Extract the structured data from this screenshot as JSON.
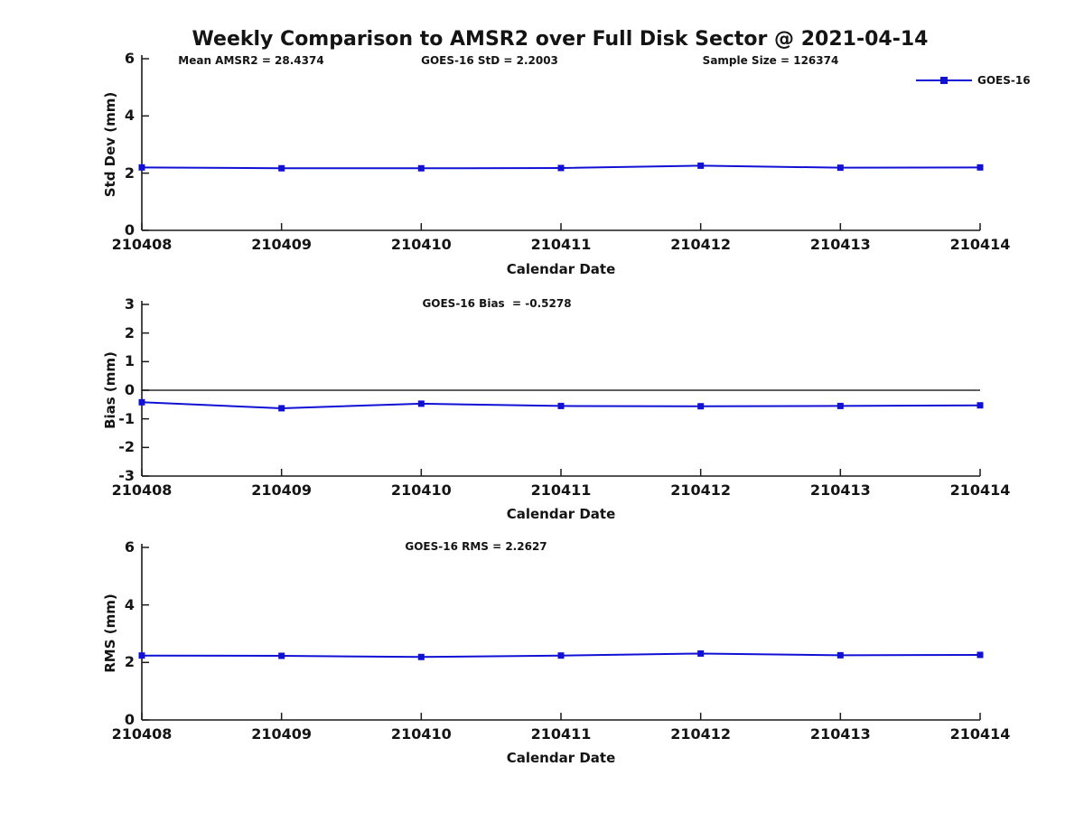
{
  "title": "Weekly Comparison to AMSR2 over Full Disk Sector @ 2021-04-14",
  "legend": {
    "label": "GOES-16"
  },
  "colors": {
    "line": "#1111d6",
    "axis": "#1a1a1a",
    "zero_line": "#000000",
    "background": "#ffffff"
  },
  "chart_data": [
    {
      "type": "line",
      "name": "std-dev",
      "ylabel": "Std Dev (mm)",
      "xlabel": "Calendar Date",
      "categories": [
        "210408",
        "210409",
        "210410",
        "210411",
        "210412",
        "210413",
        "210414"
      ],
      "series": [
        {
          "name": "GOES-16",
          "values": [
            2.2,
            2.17,
            2.17,
            2.18,
            2.26,
            2.19,
            2.2003
          ]
        }
      ],
      "ylim": [
        0,
        6
      ],
      "yticks": [
        "0",
        "2",
        "4",
        "6"
      ],
      "ytick_values": [
        0,
        2,
        4,
        6
      ],
      "grid": false,
      "legend_position": "top-right",
      "annotations": [
        "Mean AMSR2 = 28.4374",
        "GOES-16 StD = 2.2003",
        "Sample Size = 126374"
      ]
    },
    {
      "type": "line",
      "name": "bias",
      "ylabel": "Bias (mm)",
      "xlabel": "Calendar Date",
      "categories": [
        "210408",
        "210409",
        "210410",
        "210411",
        "210412",
        "210413",
        "210414"
      ],
      "series": [
        {
          "name": "GOES-16",
          "values": [
            -0.42,
            -0.63,
            -0.47,
            -0.55,
            -0.56,
            -0.55,
            -0.5278
          ]
        }
      ],
      "ylim": [
        -3,
        3
      ],
      "yticks": [
        "-3",
        "-2",
        "-1",
        "0",
        "1",
        "2",
        "3"
      ],
      "ytick_values": [
        -3,
        -2,
        -1,
        0,
        1,
        2,
        3
      ],
      "zero_line": true,
      "grid": false,
      "annotations": [
        "GOES-16 Bias  = -0.5278"
      ]
    },
    {
      "type": "line",
      "name": "rms",
      "ylabel": "RMS (mm)",
      "xlabel": "Calendar Date",
      "categories": [
        "210408",
        "210409",
        "210410",
        "210411",
        "210412",
        "210413",
        "210414"
      ],
      "series": [
        {
          "name": "GOES-16",
          "values": [
            2.24,
            2.23,
            2.19,
            2.24,
            2.31,
            2.25,
            2.2627
          ]
        }
      ],
      "ylim": [
        0,
        6
      ],
      "yticks": [
        "0",
        "2",
        "4",
        "6"
      ],
      "ytick_values": [
        0,
        2,
        4,
        6
      ],
      "grid": false,
      "annotations": [
        "GOES-16 RMS = 2.2627"
      ]
    }
  ]
}
